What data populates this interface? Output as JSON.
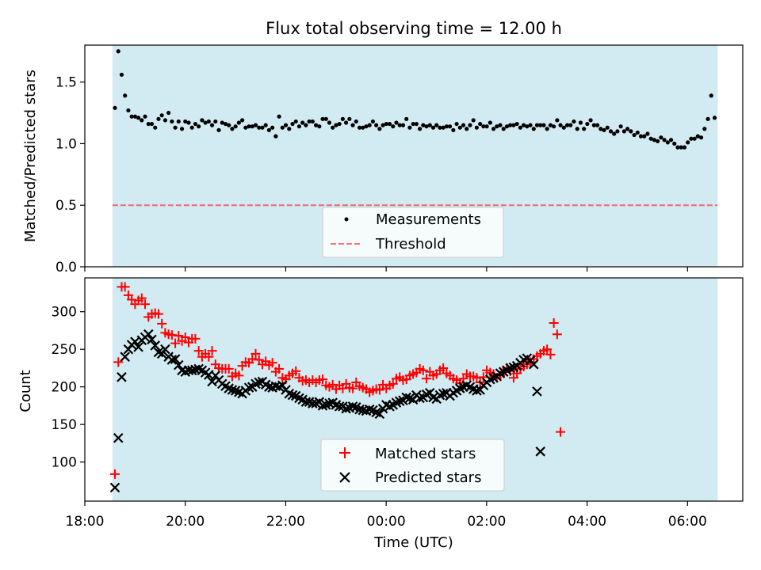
{
  "figure_title": "Flux total observing time = 12.00 h",
  "colors": {
    "band": "#add8e6",
    "measurement": "#000000",
    "threshold": "#ff0000",
    "matched": "#ff0000",
    "predicted": "#000000"
  },
  "chart_data": [
    {
      "type": "scatter",
      "title": "Flux total observing time = 12.00 h",
      "xlabel": "",
      "ylabel": "Matched/Predicted stars",
      "ylim": [
        0,
        1.8
      ],
      "yticks": [
        "0.0",
        "0.5",
        "1.0",
        "1.5"
      ],
      "xticks": [
        "18:00",
        "20:00",
        "22:00",
        "00:00",
        "02:00",
        "04:00",
        "06:00"
      ],
      "x_range_hours": [
        18.0,
        31.1
      ],
      "shaded_span_hours": [
        18.55,
        30.6
      ],
      "legend_position": "lower center",
      "series": [
        {
          "name": "Measurements",
          "marker": "dot",
          "x_start_hours": 18.6,
          "x_step_hours": 0.0667,
          "values": [
            1.29,
            1.75,
            1.56,
            1.39,
            1.27,
            1.22,
            1.22,
            1.21,
            1.19,
            1.22,
            1.16,
            1.16,
            1.13,
            1.2,
            1.23,
            1.19,
            1.25,
            1.18,
            1.13,
            1.18,
            1.12,
            1.18,
            1.17,
            1.13,
            1.16,
            1.14,
            1.19,
            1.17,
            1.18,
            1.15,
            1.18,
            1.11,
            1.17,
            1.16,
            1.15,
            1.12,
            1.14,
            1.17,
            1.19,
            1.13,
            1.14,
            1.14,
            1.15,
            1.13,
            1.13,
            1.15,
            1.11,
            1.13,
            1.06,
            1.22,
            1.13,
            1.15,
            1.12,
            1.16,
            1.18,
            1.14,
            1.17,
            1.15,
            1.18,
            1.18,
            1.15,
            1.14,
            1.2,
            1.2,
            1.17,
            1.13,
            1.15,
            1.16,
            1.2,
            1.17,
            1.2,
            1.15,
            1.18,
            1.13,
            1.13,
            1.14,
            1.15,
            1.18,
            1.15,
            1.12,
            1.15,
            1.16,
            1.16,
            1.14,
            1.17,
            1.15,
            1.15,
            1.2,
            1.13,
            1.16,
            1.16,
            1.12,
            1.15,
            1.14,
            1.15,
            1.13,
            1.15,
            1.13,
            1.13,
            1.14,
            1.14,
            1.11,
            1.16,
            1.13,
            1.15,
            1.12,
            1.15,
            1.19,
            1.13,
            1.16,
            1.14,
            1.14,
            1.17,
            1.12,
            1.14,
            1.15,
            1.12,
            1.14,
            1.15,
            1.15,
            1.16,
            1.13,
            1.15,
            1.14,
            1.15,
            1.12,
            1.15,
            1.15,
            1.15,
            1.12,
            1.15,
            1.14,
            1.19,
            1.15,
            1.13,
            1.15,
            1.15,
            1.18,
            1.12,
            1.17,
            1.12,
            1.16,
            1.19,
            1.15,
            1.15,
            1.12,
            1.11,
            1.13,
            1.1,
            1.08,
            1.1,
            1.14,
            1.1,
            1.12,
            1.1,
            1.07,
            1.09,
            1.06,
            1.06,
            1.08,
            1.04,
            1.03,
            1.02,
            1.05,
            1.03,
            1.01,
            1.03,
            1.0,
            0.97,
            0.97,
            0.97,
            1.01,
            1.04,
            1.04,
            1.06,
            1.05,
            1.12,
            1.2,
            1.39,
            1.21
          ]
        },
        {
          "name": "Threshold",
          "marker": "dashed-line",
          "value": 0.5
        }
      ]
    },
    {
      "type": "scatter",
      "title": "",
      "xlabel": "Time (UTC)",
      "ylabel": "Count",
      "ylim": [
        48,
        345
      ],
      "yticks": [
        "100",
        "150",
        "200",
        "250",
        "300"
      ],
      "xticks": [
        "18:00",
        "20:00",
        "22:00",
        "00:00",
        "02:00",
        "04:00",
        "06:00"
      ],
      "x_range_hours": [
        18.0,
        31.1
      ],
      "shaded_span_hours": [
        18.55,
        30.6
      ],
      "legend_position": "lower center",
      "series": [
        {
          "name": "Matched stars",
          "marker": "plus",
          "x_start_hours": 18.6,
          "x_step_hours": 0.0667,
          "values": [
            84,
            233,
            333,
            333,
            322,
            316,
            310,
            315,
            318,
            310,
            293,
            297,
            298,
            297,
            284,
            272,
            270,
            269,
            258,
            268,
            261,
            266,
            259,
            264,
            264,
            248,
            240,
            244,
            240,
            248,
            230,
            225,
            224,
            224,
            224,
            214,
            218,
            215,
            228,
            233,
            232,
            237,
            244,
            236,
            230,
            234,
            229,
            232,
            220,
            224,
            212,
            210,
            215,
            218,
            221,
            212,
            208,
            209,
            206,
            209,
            206,
            209,
            210,
            202,
            200,
            203,
            197,
            202,
            198,
            204,
            199,
            198,
            206,
            201,
            199,
            197,
            193,
            195,
            197,
            196,
            203,
            198,
            202,
            204,
            211,
            213,
            209,
            210,
            215,
            217,
            219,
            224,
            222,
            211,
            220,
            215,
            217,
            222,
            225,
            218,
            215,
            211,
            209,
            205,
            211,
            217,
            214,
            214,
            212,
            206,
            213,
            222,
            219,
            217,
            212,
            215,
            220,
            225,
            221,
            212,
            218,
            224,
            227,
            230,
            233,
            237,
            241,
            244,
            248,
            250,
            243,
            285,
            270,
            140
          ]
        },
        {
          "name": "Predicted stars",
          "marker": "x",
          "x_start_hours": 18.6,
          "x_step_hours": 0.0667,
          "values": [
            66,
            132,
            213,
            240,
            250,
            256,
            260,
            253,
            262,
            266,
            270,
            263,
            255,
            246,
            244,
            250,
            240,
            236,
            237,
            229,
            222,
            220,
            222,
            222,
            223,
            224,
            222,
            219,
            216,
            207,
            215,
            209,
            204,
            201,
            198,
            196,
            195,
            193,
            191,
            195,
            199,
            200,
            204,
            206,
            207,
            203,
            200,
            199,
            201,
            200,
            202,
            196,
            191,
            189,
            188,
            185,
            183,
            180,
            180,
            178,
            178,
            180,
            175,
            176,
            178,
            179,
            176,
            174,
            174,
            171,
            172,
            174,
            173,
            170,
            169,
            168,
            170,
            169,
            166,
            164,
            171,
            176,
            174,
            176,
            179,
            181,
            182,
            186,
            185,
            183,
            189,
            185,
            186,
            190,
            192,
            186,
            184,
            189,
            191,
            192,
            188,
            192,
            195,
            198,
            200,
            202,
            200,
            197,
            195,
            196,
            202,
            206,
            210,
            212,
            214,
            218,
            220,
            222,
            225,
            226,
            228,
            232,
            236,
            238,
            235,
            230,
            194,
            114
          ]
        }
      ]
    }
  ]
}
